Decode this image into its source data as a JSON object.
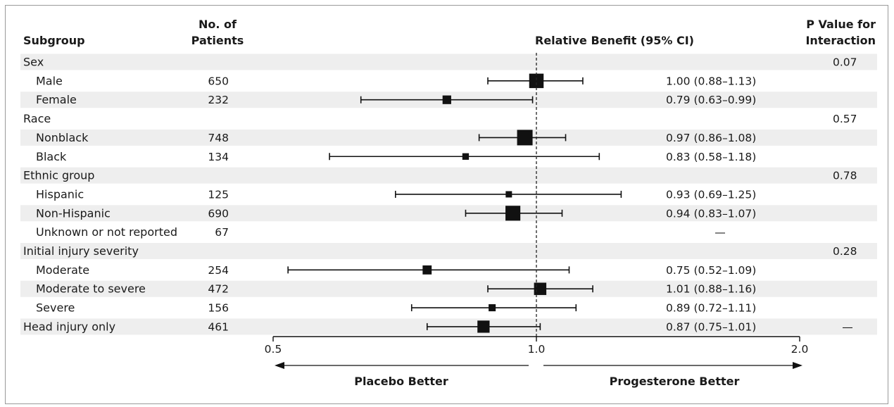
{
  "headers": {
    "subgroup": "Subgroup",
    "patients_line1": "No. of",
    "patients_line2": "Patients",
    "benefit": "Relative Benefit (95% CI)",
    "pvalue_line1": "P Value for",
    "pvalue_line2": "Interaction"
  },
  "chart_data": {
    "type": "forest",
    "xscale": "log",
    "xlim": [
      0.5,
      2.0
    ],
    "reference_line": 1.0,
    "tick_labels": [
      "0.5",
      "1.0",
      "2.0"
    ],
    "direction_labels": {
      "left": "Placebo Better",
      "right": "Progesterone Better"
    },
    "rows": [
      {
        "label": "Sex",
        "header": true,
        "n": "",
        "ci_text": "",
        "p": "0.07",
        "shade": true
      },
      {
        "label": "Male",
        "header": false,
        "n": "650",
        "est": 1.0,
        "lo": 0.88,
        "hi": 1.13,
        "ci_text": "1.00 (0.88–1.13)",
        "p": "",
        "shade": false
      },
      {
        "label": "Female",
        "header": false,
        "n": "232",
        "est": 0.79,
        "lo": 0.63,
        "hi": 0.99,
        "ci_text": "0.79 (0.63–0.99)",
        "p": "",
        "shade": true
      },
      {
        "label": "Race",
        "header": true,
        "n": "",
        "ci_text": "",
        "p": "0.57",
        "shade": false
      },
      {
        "label": "Nonblack",
        "header": false,
        "n": "748",
        "est": 0.97,
        "lo": 0.86,
        "hi": 1.08,
        "ci_text": "0.97 (0.86–1.08)",
        "p": "",
        "shade": true
      },
      {
        "label": "Black",
        "header": false,
        "n": "134",
        "est": 0.83,
        "lo": 0.58,
        "hi": 1.18,
        "ci_text": "0.83 (0.58–1.18)",
        "p": "",
        "shade": false
      },
      {
        "label": "Ethnic group",
        "header": true,
        "n": "",
        "ci_text": "",
        "p": "0.78",
        "shade": true
      },
      {
        "label": "Hispanic",
        "header": false,
        "n": "125",
        "est": 0.93,
        "lo": 0.69,
        "hi": 1.25,
        "ci_text": "0.93 (0.69–1.25)",
        "p": "",
        "shade": false
      },
      {
        "label": "Non-Hispanic",
        "header": false,
        "n": "690",
        "est": 0.94,
        "lo": 0.83,
        "hi": 1.07,
        "ci_text": "0.94 (0.83–1.07)",
        "p": "",
        "shade": true
      },
      {
        "label": "Unknown or not reported",
        "header": false,
        "n": "67",
        "ci_text": "—",
        "p": "",
        "shade": false
      },
      {
        "label": "Initial injury severity",
        "header": true,
        "n": "",
        "ci_text": "",
        "p": "0.28",
        "shade": true
      },
      {
        "label": "Moderate",
        "header": false,
        "n": "254",
        "est": 0.75,
        "lo": 0.52,
        "hi": 1.09,
        "ci_text": "0.75 (0.52–1.09)",
        "p": "",
        "shade": false
      },
      {
        "label": "Moderate to severe",
        "header": false,
        "n": "472",
        "est": 1.01,
        "lo": 0.88,
        "hi": 1.16,
        "ci_text": "1.01 (0.88–1.16)",
        "p": "",
        "shade": true
      },
      {
        "label": "Severe",
        "header": false,
        "n": "156",
        "est": 0.89,
        "lo": 0.72,
        "hi": 1.11,
        "ci_text": "0.89 (0.72–1.11)",
        "p": "",
        "shade": false
      },
      {
        "label": "Head injury only",
        "header": true,
        "n": "461",
        "est": 0.87,
        "lo": 0.75,
        "hi": 1.01,
        "ci_text": "0.87 (0.75–1.01)",
        "p": "—",
        "shade": true
      }
    ]
  }
}
